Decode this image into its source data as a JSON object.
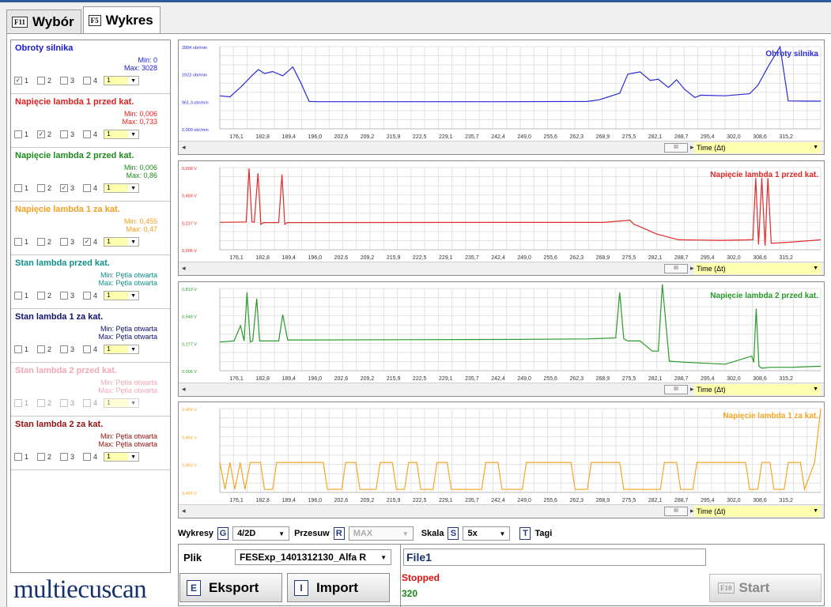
{
  "tabs": [
    {
      "key": "F11",
      "label": "Wybór",
      "active": false
    },
    {
      "key": "F5",
      "label": "Wykres",
      "active": true
    }
  ],
  "params": [
    {
      "title": "Obroty silnika",
      "color": "#1a1acc",
      "min": "Min: 0",
      "max": "Max: 3028",
      "checked": 1,
      "num": "1"
    },
    {
      "title": "Napięcie lambda 1 przed kat.",
      "color": "#e02020",
      "min": "Min: 0,006",
      "max": "Max: 0,733",
      "checked": 2,
      "num": "1"
    },
    {
      "title": "Napięcie lambda 2 przed kat.",
      "color": "#1e8a1e",
      "min": "Min: 0,006",
      "max": "Max: 0,86",
      "checked": 3,
      "num": "1"
    },
    {
      "title": "Napięcie lambda 1 za kat.",
      "color": "#f0a020",
      "min": "Min: 0,455",
      "max": "Max: 0,47",
      "checked": 4,
      "num": "1"
    },
    {
      "title": "Stan lambda przed kat.",
      "color": "#10908a",
      "min": "Min: Pętla otwarta",
      "max": "Max: Pętla otwarta",
      "checked": 0,
      "num": "1"
    },
    {
      "title": "Stan lambda 1 za kat.",
      "color": "#101070",
      "min": "Min: Pętla otwarta",
      "max": "Max: Pętla otwarta",
      "checked": 0,
      "num": "1"
    },
    {
      "title": "Stan lambda 2 przed kat.",
      "color": "#f2a8b8",
      "min": "Min: Pętla otwarta",
      "max": "Max: Pętla otwarta",
      "checked": 0,
      "num": "1"
    },
    {
      "title": "Stan lambda 2 za kat.",
      "color": "#9a1010",
      "min": "Min: Pętla otwarta",
      "max": "Max: Pętla otwarta",
      "checked": 0,
      "num": "1"
    }
  ],
  "checkbox_labels": [
    "1",
    "2",
    "3",
    "4"
  ],
  "x_ticks": [
    "176,1",
    "182,8",
    "189,4",
    "196,0",
    "202,6",
    "209,2",
    "215,9",
    "222,5",
    "229,1",
    "235,7",
    "242,4",
    "249,0",
    "255,6",
    "262,3",
    "268,9",
    "275,5",
    "282,1",
    "288,7",
    "295,4",
    "302,0",
    "308,6",
    "315,2"
  ],
  "time_label": "Time (Δt)",
  "scroll_thumb": "III",
  "chart_data": [
    {
      "type": "line",
      "title": "Obroty silnika",
      "color": "#2b2bd8",
      "y_ticks": [
        "2884 obr/min",
        "1923 obr/min",
        "961,3 obr/min",
        "0,000 obr/min"
      ],
      "ylim": [
        0,
        2884
      ],
      "xlim": [
        171.5,
        319.5
      ],
      "x": [
        171.5,
        174.0,
        176.8,
        179.5,
        181.0,
        182.5,
        184.5,
        187.0,
        189.5,
        191.5,
        193.5,
        196.0,
        210.0,
        240.0,
        262.0,
        265.0,
        270.0,
        272.0,
        275.0,
        277.5,
        279.5,
        282.0,
        284.0,
        286.0,
        288.5,
        290.0,
        296.0,
        302.0,
        304.0,
        306.5,
        309.5,
        311.5,
        319.5
      ],
      "values": [
        1160,
        1120,
        1480,
        1880,
        2080,
        1940,
        2010,
        1860,
        2170,
        1600,
        960,
        950,
        950,
        950,
        960,
        1020,
        1250,
        1920,
        2000,
        1700,
        1740,
        1450,
        1720,
        1380,
        1100,
        1180,
        1160,
        1230,
        1520,
        2170,
        2880,
        980,
        970
      ]
    },
    {
      "type": "line",
      "title": "Napięcie lambda 1 przed kat.",
      "color": "#e02a2a",
      "y_ticks": [
        "0,698 V",
        "0,468 V",
        "0,237 V",
        "0,006 V"
      ],
      "ylim": [
        0.006,
        0.698
      ],
      "xlim": [
        171.5,
        319.5
      ],
      "x": [
        171.5,
        178.0,
        178.7,
        179.4,
        180.0,
        180.9,
        181.6,
        182.3,
        182.9,
        186.0,
        186.8,
        187.5,
        188.2,
        195.0,
        240.0,
        266.0,
        272.5,
        273.5,
        275.0,
        279.0,
        284.5,
        295.0,
        302.8,
        303.5,
        304.2,
        305.0,
        305.8,
        306.5,
        307.3,
        312.0,
        319.5
      ],
      "values": [
        0.237,
        0.24,
        0.69,
        0.24,
        0.238,
        0.65,
        0.22,
        0.235,
        0.235,
        0.235,
        0.64,
        0.22,
        0.235,
        0.235,
        0.236,
        0.236,
        0.255,
        0.22,
        0.2,
        0.14,
        0.09,
        0.085,
        0.09,
        0.61,
        0.05,
        0.61,
        0.04,
        0.61,
        0.06,
        0.07,
        0.09
      ]
    },
    {
      "type": "line",
      "title": "Napięcie lambda 2 przed kat.",
      "color": "#2a9a2a",
      "y_ticks": [
        "0,819 V",
        "0,548 V",
        "0,277 V",
        "0,006 V"
      ],
      "ylim": [
        0.006,
        0.819
      ],
      "xlim": [
        171.5,
        319.5
      ],
      "x": [
        171.5,
        175.0,
        176.6,
        177.5,
        178.2,
        179.0,
        179.6,
        180.6,
        181.3,
        186.0,
        187.0,
        188.2,
        195.0,
        240.0,
        262.0,
        269.0,
        270.0,
        271.0,
        272.0,
        275.0,
        278.0,
        279.5,
        280.5,
        282.2,
        286.0,
        296.0,
        302.5,
        303.0,
        303.6,
        304.3,
        305.0,
        307.0,
        312.0,
        319.5
      ],
      "values": [
        0.29,
        0.3,
        0.45,
        0.3,
        0.78,
        0.29,
        0.3,
        0.72,
        0.3,
        0.3,
        0.56,
        0.31,
        0.31,
        0.315,
        0.32,
        0.33,
        0.78,
        0.32,
        0.3,
        0.3,
        0.2,
        0.2,
        0.86,
        0.1,
        0.09,
        0.07,
        0.15,
        0.09,
        0.62,
        0.05,
        0.03,
        0.04,
        0.04,
        0.05
      ]
    },
    {
      "type": "line",
      "title": "Napięcie lambda 1 za kat.",
      "color": "#f5a623",
      "y_ticks": [
        "0,469 V",
        "0,464 V",
        "0,460 V",
        "0,455 V"
      ],
      "ylim": [
        0.455,
        0.469
      ],
      "xlim": [
        171.5,
        319.5
      ],
      "x": [
        171.5,
        172.8,
        174.0,
        175.2,
        176.5,
        177.7,
        179.0,
        181.5,
        182.5,
        184.5,
        185.5,
        188.5,
        189.5,
        197.0,
        198.0,
        201.5,
        202.5,
        205.0,
        206.0,
        210.0,
        211.0,
        214.0,
        215.0,
        217.0,
        218.0,
        220.0,
        221.0,
        224.0,
        225.0,
        227.5,
        228.5,
        236.0,
        237.0,
        240.0,
        241.0,
        246.0,
        247.0,
        258.0,
        259.0,
        262.0,
        263.0,
        270.0,
        271.0,
        280.0,
        281.0,
        284.0,
        285.0,
        288.0,
        289.0,
        301.0,
        302.0,
        304.0,
        305.0,
        307.0,
        308.0,
        310.5,
        311.5,
        314.5,
        315.5,
        318.0,
        319.5
      ],
      "values": [
        0.46,
        0.4555,
        0.46,
        0.4555,
        0.46,
        0.4555,
        0.46,
        0.46,
        0.4555,
        0.4555,
        0.46,
        0.46,
        0.46,
        0.46,
        0.4555,
        0.4555,
        0.46,
        0.46,
        0.4555,
        0.4555,
        0.46,
        0.46,
        0.4555,
        0.4555,
        0.46,
        0.46,
        0.4555,
        0.4555,
        0.46,
        0.46,
        0.4555,
        0.4555,
        0.46,
        0.46,
        0.4555,
        0.4555,
        0.46,
        0.46,
        0.4555,
        0.4555,
        0.46,
        0.46,
        0.4555,
        0.4555,
        0.46,
        0.46,
        0.4555,
        0.4555,
        0.46,
        0.46,
        0.4555,
        0.4555,
        0.46,
        0.46,
        0.4555,
        0.4555,
        0.46,
        0.46,
        0.4555,
        0.46,
        0.469
      ]
    }
  ],
  "controls": {
    "wykresy_label": "Wykresy",
    "wykresy_key": "G",
    "wykresy_value": "4/2D",
    "przesuw_label": "Przesuw",
    "przesuw_key": "R",
    "przesuw_value": "MAX",
    "skala_label": "Skala",
    "skala_key": "S",
    "skala_value": "5x",
    "tagi_key": "T",
    "tagi_label": "Tagi"
  },
  "bottom": {
    "plik_label": "Plik",
    "plik_value": "FESExp_1401312130_Alfa R",
    "file_name": "File1",
    "status": "Stopped",
    "count": "320",
    "export_key": "E",
    "export_label": "Eksport",
    "import_key": "I",
    "import_label": "Import",
    "start_key": "F10",
    "start_label": "Start"
  },
  "logo": "multiecuscan",
  "colors": {
    "status_stopped": "#e01010",
    "count_green": "#1a8a1a",
    "key_blue": "#233a80",
    "topline": "#2f5d9b"
  }
}
